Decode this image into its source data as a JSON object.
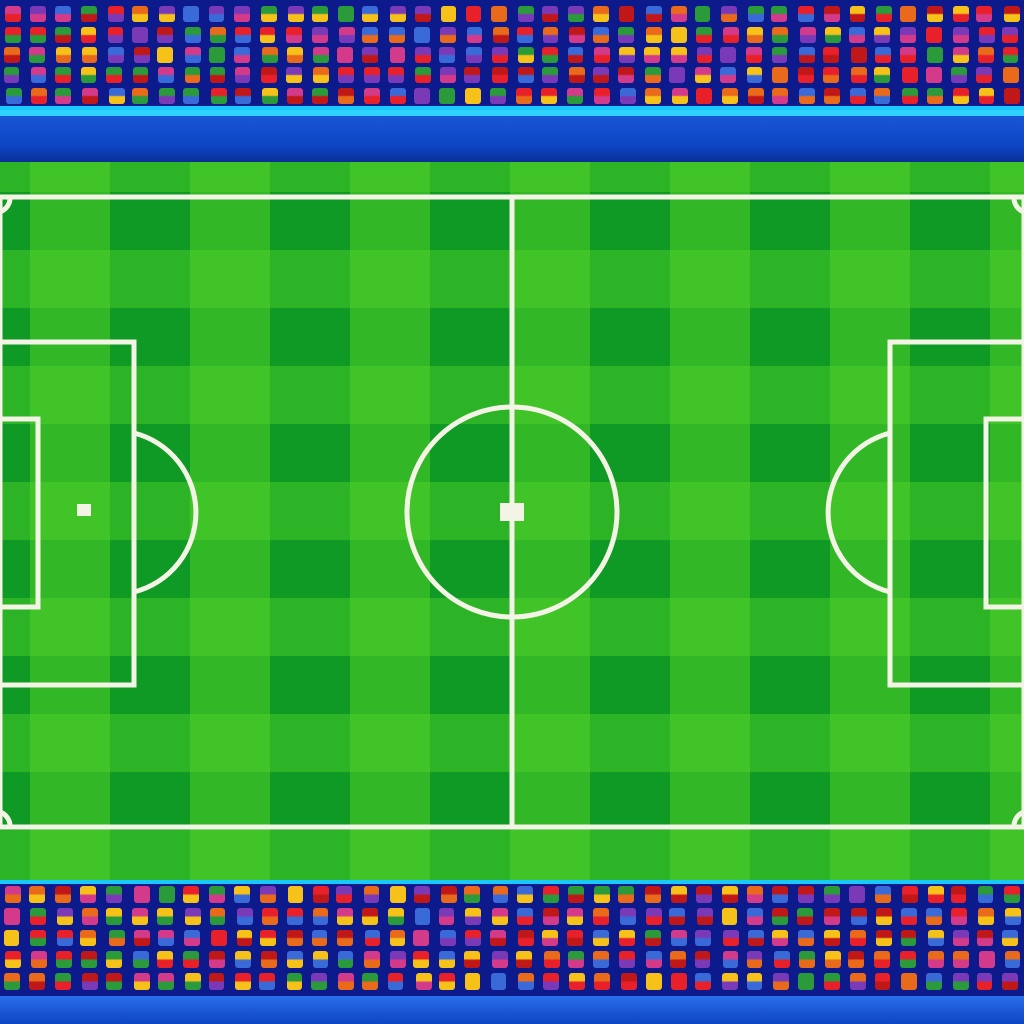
{
  "scene": {
    "type": "soccer-pitch-top-down",
    "colors": {
      "grass_dark": "#0e9a24",
      "grass_light": "#4fd228",
      "lines": "#f4f4e6",
      "stand": "#0c1a8c",
      "advert_band": "#0d44c4",
      "rim_light": "#19c8ff"
    }
  }
}
